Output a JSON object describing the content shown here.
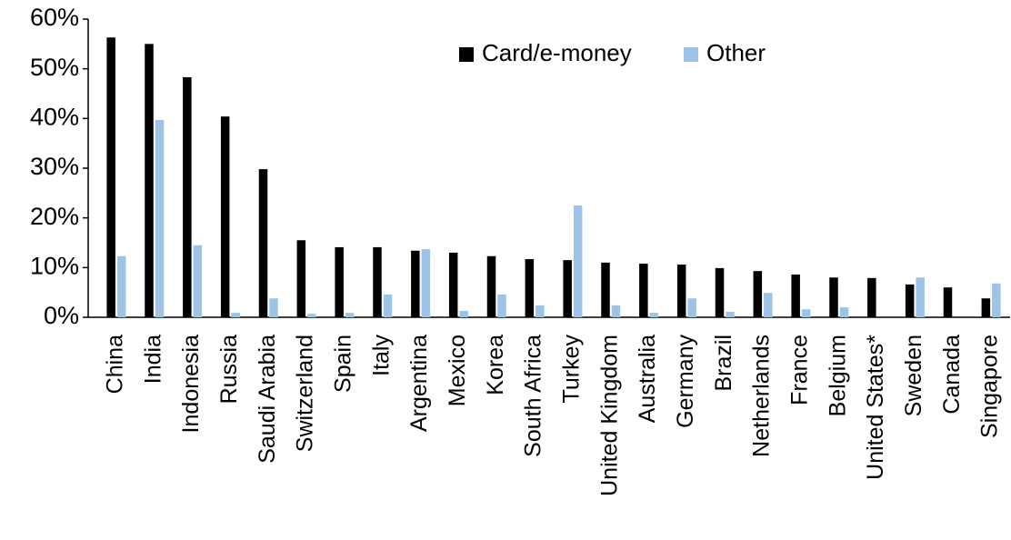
{
  "chart_data": {
    "type": "bar",
    "categories": [
      "China",
      "India",
      "Indonesia",
      "Russia",
      "Saudi Arabia",
      "Switzerland",
      "Spain",
      "Italy",
      "Argentina",
      "Mexico",
      "Korea",
      "South Africa",
      "Turkey",
      "United Kingdom",
      "Australia",
      "Germany",
      "Brazil",
      "Netherlands",
      "France",
      "Belgium",
      "United States*",
      "Sweden",
      "Canada",
      "Singapore"
    ],
    "series": [
      {
        "name": "Card/e-money",
        "color": "#000000",
        "values": [
          56.3,
          55.0,
          48.3,
          40.4,
          29.8,
          15.5,
          14.1,
          14.1,
          13.4,
          13.0,
          12.3,
          11.7,
          11.5,
          11.0,
          10.8,
          10.6,
          9.9,
          9.3,
          8.6,
          8.0,
          7.9,
          6.6,
          6.0,
          3.8
        ]
      },
      {
        "name": "Other",
        "color": "#9dc3e6",
        "values": [
          12.3,
          39.7,
          14.5,
          0.9,
          3.8,
          0.7,
          0.9,
          4.6,
          13.7,
          1.3,
          4.6,
          2.4,
          22.5,
          2.4,
          0.9,
          3.8,
          1.1,
          4.9,
          1.6,
          2.0,
          null,
          8.0,
          null,
          6.8
        ]
      }
    ],
    "ylim": [
      0,
      60
    ],
    "yticks": [
      {
        "value": 0,
        "label": "0%"
      },
      {
        "value": 10,
        "label": "10%"
      },
      {
        "value": 20,
        "label": "20%"
      },
      {
        "value": 30,
        "label": "30%"
      },
      {
        "value": 40,
        "label": "40%"
      },
      {
        "value": 50,
        "label": "50%"
      },
      {
        "value": 60,
        "label": "60%"
      }
    ],
    "grid": false,
    "legend": "top"
  }
}
